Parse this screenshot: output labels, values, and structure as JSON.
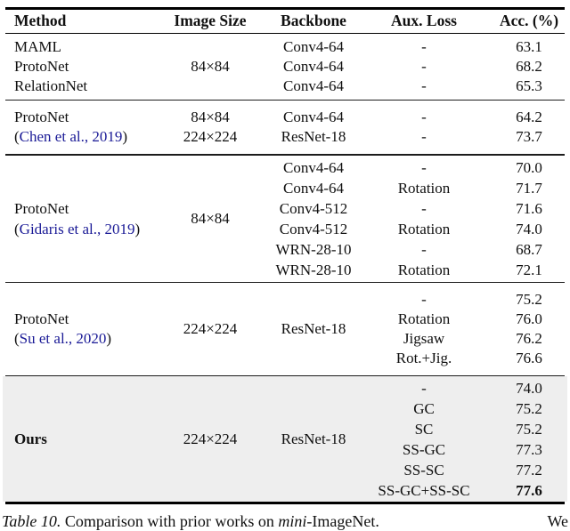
{
  "colors": {
    "citation_blue": "#1a1a96",
    "highlight_bg": "#eeeeee",
    "text": "#101010"
  },
  "table": {
    "columns": [
      "Method",
      "Image Size",
      "Backbone",
      "Aux. Loss",
      "Acc. (%)"
    ],
    "sections": [
      {
        "methods": [
          "MAML",
          "ProtoNet",
          "RelationNet"
        ],
        "size": "84×84",
        "rows": [
          {
            "backbone": "Conv4-64",
            "aux": "-",
            "acc": "63.1"
          },
          {
            "backbone": "Conv4-64",
            "aux": "-",
            "acc": "68.2"
          },
          {
            "backbone": "Conv4-64",
            "aux": "-",
            "acc": "65.3"
          }
        ]
      },
      {
        "method": "ProtoNet",
        "citation": {
          "pre": "(",
          "link": "Chen et al., 2019",
          "post": ")"
        },
        "rows": [
          {
            "size": "84×84",
            "backbone": "Conv4-64",
            "aux": "-",
            "acc": "64.2"
          },
          {
            "size": "224×224",
            "backbone": "ResNet-18",
            "aux": "-",
            "acc": "73.7"
          }
        ]
      },
      {
        "method": "ProtoNet",
        "citation": {
          "pre": "(",
          "link": "Gidaris et al., 2019",
          "post": ")"
        },
        "size": "84×84",
        "rows": [
          {
            "backbone": "Conv4-64",
            "aux": "-",
            "acc": "70.0"
          },
          {
            "backbone": "Conv4-64",
            "aux": "Rotation",
            "acc": "71.7"
          },
          {
            "backbone": "Conv4-512",
            "aux": "-",
            "acc": "71.6"
          },
          {
            "backbone": "Conv4-512",
            "aux": "Rotation",
            "acc": "74.0"
          },
          {
            "backbone": "WRN-28-10",
            "aux": "-",
            "acc": "68.7"
          },
          {
            "backbone": "WRN-28-10",
            "aux": "Rotation",
            "acc": "72.1"
          }
        ]
      },
      {
        "method": "ProtoNet",
        "citation": {
          "pre": "(",
          "link": "Su et al., 2020",
          "post": ")"
        },
        "size": "224×224",
        "backbone": "ResNet-18",
        "rows": [
          {
            "aux": "-",
            "acc": "75.2"
          },
          {
            "aux": "Rotation",
            "acc": "76.0"
          },
          {
            "aux": "Jigsaw",
            "acc": "76.2"
          },
          {
            "aux": "Rot.+Jig.",
            "acc": "76.6"
          }
        ]
      },
      {
        "method": "Ours",
        "size": "224×224",
        "backbone": "ResNet-18",
        "rows": [
          {
            "aux": "-",
            "acc": "74.0"
          },
          {
            "aux": "GC",
            "acc": "75.2"
          },
          {
            "aux": "SC",
            "acc": "75.2"
          },
          {
            "aux": "SS-GC",
            "acc": "77.3"
          },
          {
            "aux": "SS-SC",
            "acc": "77.2"
          },
          {
            "aux": "SS-GC+SS-SC",
            "acc": "77.6"
          }
        ]
      }
    ]
  },
  "caption": {
    "label": "Table 10.",
    "text": " Comparison with prior works on ",
    "emph": "mini",
    "rest": "-ImageNet.",
    "tail": "We"
  }
}
